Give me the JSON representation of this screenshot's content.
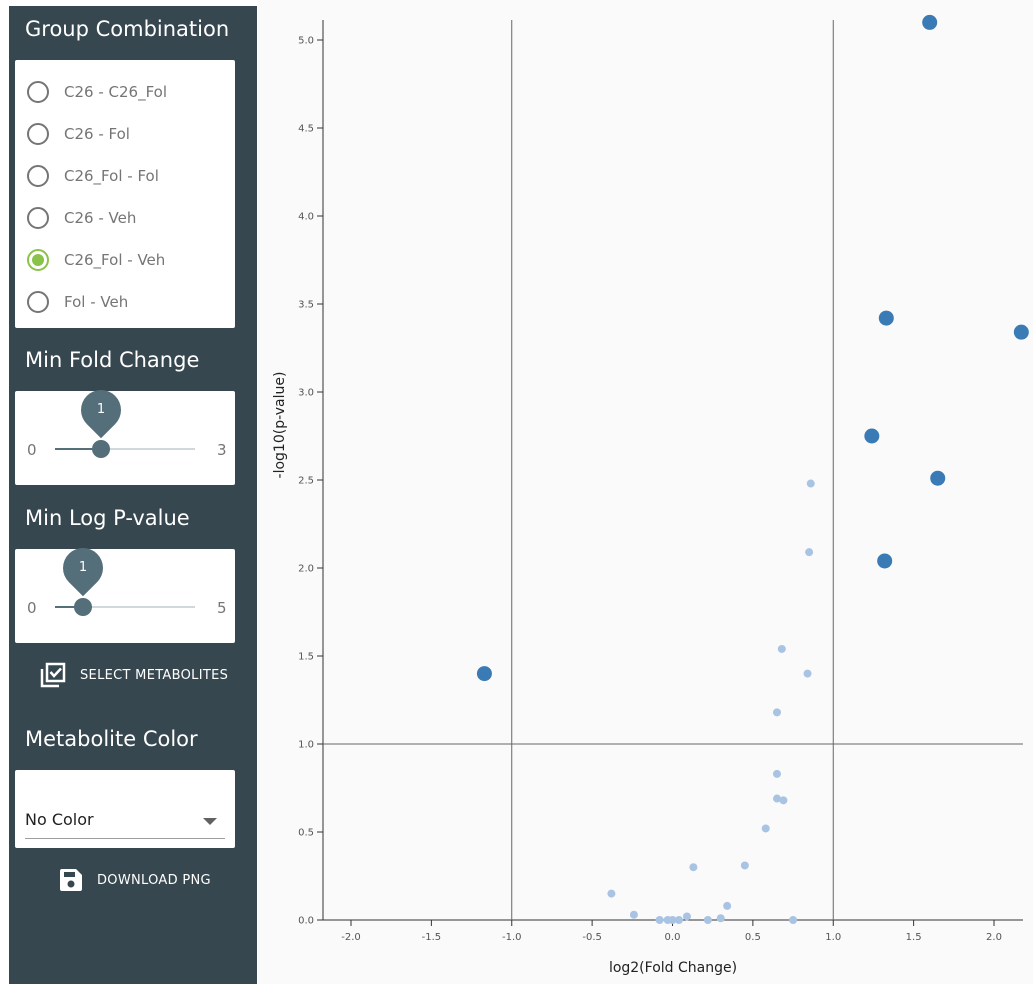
{
  "sidebar": {
    "group_combination": {
      "title": "Group Combination",
      "options": [
        "C26 - C26_Fol",
        "C26 - Fol",
        "C26_Fol - Fol",
        "C26 - Veh",
        "C26_Fol - Veh",
        "Fol - Veh"
      ],
      "selected": "C26_Fol - Veh"
    },
    "min_fold_change": {
      "title": "Min Fold Change",
      "min": "0",
      "max": "3",
      "value": "1"
    },
    "min_log_pvalue": {
      "title": "Min Log P-value",
      "min": "0",
      "max": "5",
      "value": "1"
    },
    "select_metabolites": {
      "label": "SELECT METABOLITES",
      "icon": "checkbox-multiple-icon"
    },
    "metabolite_color": {
      "title": "Metabolite Color",
      "selected": "No Color"
    },
    "download_png": {
      "label": "DOWNLOAD PNG",
      "icon": "floppy-disk-icon"
    }
  },
  "colors": {
    "sidebar_bg": "#37474f",
    "accent_radio": "#8bc34a",
    "slider": "#546e7a",
    "significant_point": "#3a7ab5",
    "nonsignificant_point": "#a9c3e3"
  },
  "chart_data": {
    "type": "scatter",
    "xlabel": "log2(Fold Change)",
    "ylabel": "-log10(p-value)",
    "xlim": [
      -2.2,
      2.15
    ],
    "ylim": [
      -0.05,
      5.1
    ],
    "xticks": [
      "-2.0",
      "-1.5",
      "-1.0",
      "-0.5",
      "0.0",
      "0.5",
      "1.0",
      "1.5",
      "2.0"
    ],
    "yticks": [
      "0.0",
      "0.5",
      "1.0",
      "1.5",
      "2.0",
      "2.5",
      "3.0",
      "3.5",
      "4.0",
      "4.5",
      "5.0"
    ],
    "threshold_lines": {
      "x": [
        -1.0,
        1.0
      ],
      "y": 1.0
    },
    "series": [
      {
        "x": [
          1.6,
          1.33,
          2.17,
          1.24,
          1.65,
          1.32,
          -1.17
        ],
        "y": [
          5.1,
          3.42,
          3.34,
          2.75,
          2.51,
          2.04,
          1.4
        ],
        "size": "large"
      },
      {
        "x": [
          0.86,
          0.85,
          0.68,
          0.84,
          0.65,
          0.65,
          0.65,
          0.69,
          0.58,
          0.45,
          0.13,
          -0.38,
          -0.24,
          -0.08,
          -0.03,
          0.0,
          0.04,
          0.09,
          0.22,
          0.3,
          0.34,
          0.75
        ],
        "y": [
          2.48,
          2.09,
          1.54,
          1.4,
          1.18,
          0.83,
          0.69,
          0.68,
          0.52,
          0.31,
          0.3,
          0.15,
          0.03,
          0.0,
          0.0,
          0.0,
          0.0,
          0.02,
          0.0,
          0.01,
          0.08,
          0.0
        ],
        "size": "small"
      }
    ]
  }
}
